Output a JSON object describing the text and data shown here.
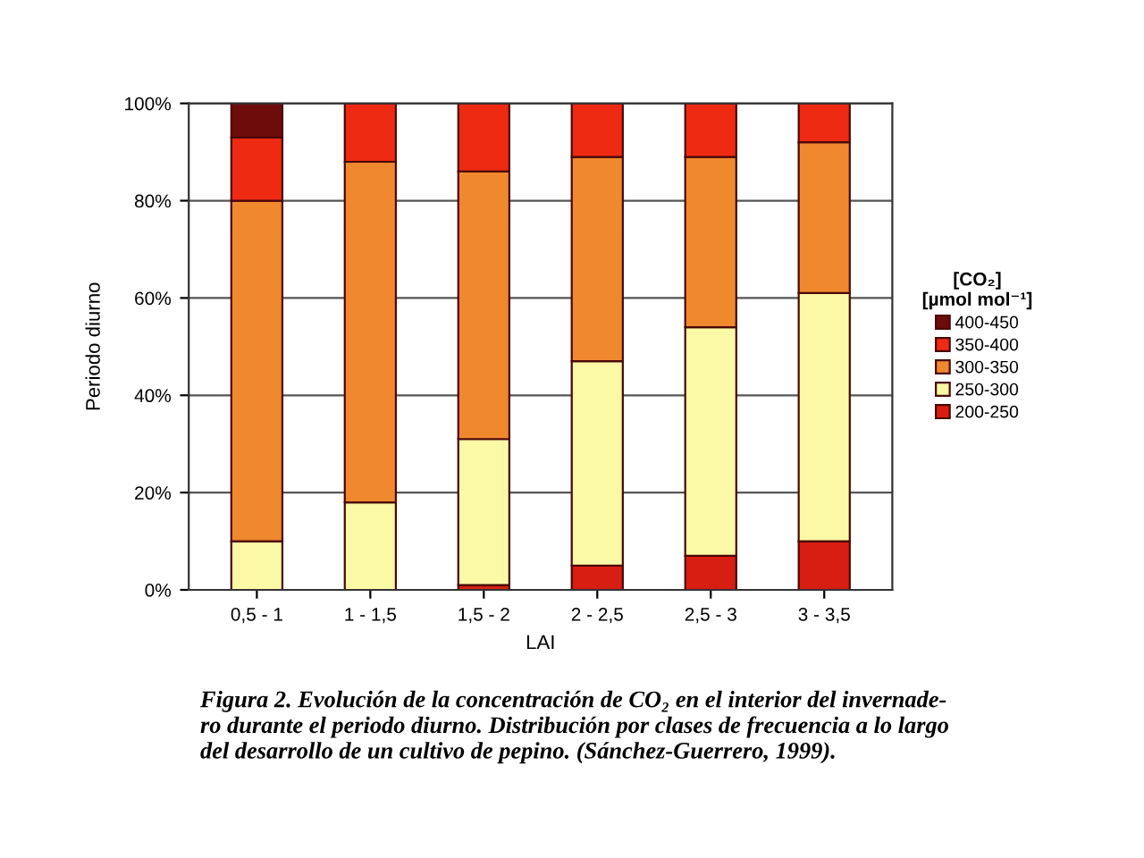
{
  "chart_data": {
    "type": "bar",
    "stacked": true,
    "categories": [
      "0,5 - 1",
      "1 - 1,5",
      "1,5 - 2",
      "2 - 2,5",
      "2,5 - 3",
      "3 - 3,5"
    ],
    "series": [
      {
        "name": "200-250",
        "color": "#d81e12",
        "values": [
          null,
          null,
          1,
          5,
          7,
          10
        ]
      },
      {
        "name": "250-300",
        "color": "#fbf8a6",
        "values": [
          10,
          18,
          30,
          42,
          47,
          51
        ]
      },
      {
        "name": "300-350",
        "color": "#f0882e",
        "values": [
          70,
          70,
          55,
          42,
          35,
          31
        ]
      },
      {
        "name": "350-400",
        "color": "#ee2a12",
        "values": [
          13,
          12,
          14,
          11,
          11,
          8
        ]
      },
      {
        "name": "400-450",
        "color": "#6e0c0c",
        "values": [
          7,
          null,
          null,
          null,
          null,
          null
        ]
      }
    ],
    "ylim": [
      0,
      100
    ],
    "yticks": [
      {
        "value": 0,
        "label": "0%"
      },
      {
        "value": 20,
        "label": "20%"
      },
      {
        "value": 40,
        "label": "40%"
      },
      {
        "value": 60,
        "label": "60%"
      },
      {
        "value": 80,
        "label": "80%"
      },
      {
        "value": 100,
        "label": "100%"
      }
    ],
    "xlabel": "LAI",
    "ylabel": "Periodo diurno",
    "legend": "right",
    "legend_title": "[CO₂]\n[µmol mol⁻¹]",
    "grid": "y",
    "annotations": [
      "Figura 2. Evolución de la concentración de CO₂ en el interior del invernade-\nro durante el periodo diurno. Distribución por clases de frecuencia a lo largo\ndel desarrollo de un cultivo de pepino. (Sánchez-Guerrero, 1999)."
    ]
  }
}
